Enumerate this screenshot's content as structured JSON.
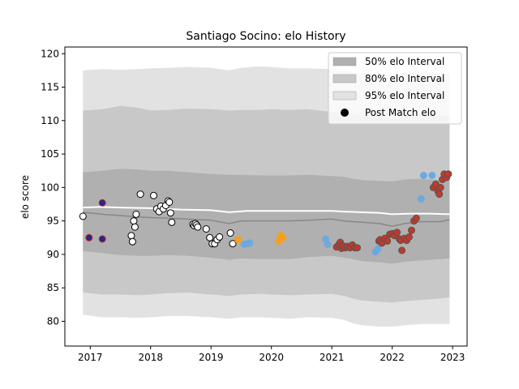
{
  "chart_data": {
    "type": "scatter",
    "title": "Santiago Socino: elo History",
    "xlabel": "",
    "ylabel": "elo score",
    "xlim": [
      2016.58,
      2023.24
    ],
    "ylim": [
      76.3,
      121.0
    ],
    "xticks": [
      2017,
      2018,
      2019,
      2020,
      2021,
      2022,
      2023
    ],
    "yticks": [
      80,
      85,
      90,
      95,
      100,
      105,
      110,
      115,
      120
    ],
    "legend": {
      "position": "top-right",
      "entries": [
        {
          "label": "50% elo Interval",
          "color": "#b0b0b0"
        },
        {
          "label": "80% elo Interval",
          "color": "#c8c8c8"
        },
        {
          "label": "95% elo Interval",
          "color": "#e2e2e2"
        },
        {
          "label": "Post Match elo",
          "color": "#000000"
        }
      ]
    },
    "bands": {
      "x": [
        2016.88,
        2017.2,
        2017.5,
        2017.8,
        2018.0,
        2018.3,
        2018.6,
        2019.0,
        2019.3,
        2019.5,
        2019.8,
        2020.0,
        2020.3,
        2020.6,
        2021.0,
        2021.2,
        2021.35,
        2021.5,
        2021.8,
        2022.0,
        2022.2,
        2022.5,
        2022.8,
        2022.95
      ],
      "p95_upper": [
        117.5,
        117.7,
        117.6,
        117.7,
        117.8,
        117.9,
        118.0,
        117.9,
        117.5,
        117.9,
        118.1,
        118.0,
        117.8,
        117.8,
        117.7,
        117.5,
        117.2,
        117.0,
        116.8,
        116.8,
        117.2,
        117.3,
        117.1,
        117.0
      ],
      "p80_upper": [
        111.5,
        111.7,
        112.2,
        111.9,
        111.5,
        111.6,
        111.8,
        111.7,
        111.5,
        111.6,
        111.6,
        111.7,
        111.6,
        111.7,
        111.3,
        111.2,
        111.0,
        110.8,
        110.5,
        110.4,
        110.7,
        110.7,
        110.7,
        110.7
      ],
      "p50_upper": [
        102.3,
        102.5,
        102.8,
        102.7,
        102.5,
        102.5,
        102.3,
        102.0,
        101.9,
        101.9,
        101.8,
        101.8,
        101.8,
        101.9,
        101.7,
        101.6,
        101.3,
        101.1,
        101.0,
        100.9,
        101.2,
        101.3,
        101.1,
        101.1
      ],
      "median": [
        96.3,
        96.0,
        95.8,
        95.6,
        95.5,
        95.4,
        95.3,
        95.1,
        94.6,
        95.0,
        95.0,
        95.0,
        95.0,
        95.1,
        95.3,
        95.0,
        94.9,
        94.8,
        94.6,
        94.2,
        94.6,
        94.9,
        94.9,
        95.2
      ],
      "p50_lower": [
        90.5,
        90.2,
        89.9,
        89.8,
        89.8,
        89.9,
        89.8,
        89.5,
        89.2,
        89.4,
        89.3,
        89.3,
        89.3,
        89.6,
        89.8,
        89.5,
        89.3,
        89.0,
        88.8,
        88.6,
        88.9,
        89.1,
        89.3,
        89.4
      ],
      "p80_lower": [
        84.3,
        84.0,
        84.0,
        83.9,
        84.0,
        84.2,
        84.3,
        84.0,
        83.8,
        84.0,
        84.1,
        84.0,
        83.9,
        84.0,
        84.1,
        83.8,
        83.4,
        83.1,
        82.9,
        82.8,
        83.0,
        83.2,
        83.4,
        83.6
      ],
      "p95_lower": [
        81.0,
        80.6,
        80.6,
        80.5,
        80.6,
        80.8,
        80.8,
        80.6,
        80.4,
        80.6,
        80.6,
        80.5,
        80.4,
        80.6,
        80.5,
        80.2,
        79.7,
        79.4,
        79.2,
        79.2,
        79.4,
        79.6,
        79.6,
        79.6
      ]
    },
    "mean_line": {
      "color": "#ffffff",
      "x": [
        2016.88,
        2017.2,
        2017.5,
        2018.0,
        2018.5,
        2019.0,
        2019.3,
        2019.6,
        2020.0,
        2020.5,
        2021.0,
        2021.2,
        2021.5,
        2021.8,
        2022.0,
        2022.3,
        2022.6,
        2022.95
      ],
      "y": [
        97.0,
        97.1,
        97.0,
        96.9,
        96.7,
        96.6,
        96.3,
        96.5,
        96.5,
        96.5,
        96.5,
        96.4,
        96.3,
        96.2,
        96.0,
        96.1,
        96.1,
        96.0
      ]
    },
    "series": [
      {
        "fill": "#ffffff",
        "edge": "#000000",
        "x": [
          2016.88,
          2017.68,
          2017.7,
          2017.72,
          2017.74,
          2017.76,
          2017.83,
          2018.05,
          2018.1,
          2018.14,
          2018.17,
          2018.21,
          2018.25,
          2018.29,
          2018.31,
          2018.33,
          2018.35,
          2018.7,
          2018.72,
          2018.74,
          2018.76,
          2018.78,
          2018.92,
          2018.98,
          2019.02,
          2019.06,
          2019.1,
          2019.14,
          2019.32,
          2019.36
        ],
        "y": [
          95.7,
          92.8,
          91.9,
          95.0,
          94.1,
          96.0,
          99.0,
          98.8,
          96.8,
          96.4,
          97.2,
          96.8,
          97.3,
          98.0,
          97.8,
          96.2,
          94.8,
          94.5,
          94.3,
          94.6,
          94.4,
          94.1,
          93.8,
          92.5,
          91.6,
          91.6,
          92.2,
          92.6,
          93.2,
          91.6
        ]
      },
      {
        "fill": "#1f2a8a",
        "edge": "#cc2222",
        "x": [
          2016.98,
          2017.2,
          2017.2
        ],
        "y": [
          92.5,
          97.7,
          92.3
        ]
      },
      {
        "fill": "#f5a01c",
        "edge": "#f5a01c",
        "x": [
          2019.45,
          2020.12,
          2020.16,
          2020.19
        ],
        "y": [
          92.2,
          92.0,
          92.8,
          92.5
        ]
      },
      {
        "fill": "#6fa8dc",
        "edge": "#6fa8dc",
        "x": [
          2019.55,
          2019.6,
          2019.64,
          2020.9,
          2020.93,
          2021.72,
          2021.76,
          2022.48,
          2022.52,
          2022.66
        ],
        "y": [
          91.5,
          91.6,
          91.7,
          92.3,
          91.5,
          90.4,
          90.8,
          98.3,
          101.8,
          101.8
        ]
      },
      {
        "fill": "#c0392b",
        "edge": "#555555",
        "x": [
          2021.08,
          2021.12,
          2021.14,
          2021.16,
          2021.18,
          2021.22,
          2021.26,
          2021.3,
          2021.34,
          2021.38,
          2021.42,
          2021.78,
          2021.8,
          2021.83,
          2021.88,
          2021.92,
          2021.96,
          2022.0,
          2022.04,
          2022.08,
          2022.12,
          2022.14,
          2022.16,
          2022.2,
          2022.24,
          2022.28,
          2022.32,
          2022.36,
          2022.4,
          2022.68,
          2022.72,
          2022.76,
          2022.78,
          2022.8,
          2022.83,
          2022.86,
          2022.9,
          2022.93
        ],
        "y": [
          91.1,
          91.5,
          91.8,
          90.9,
          91.3,
          91.0,
          91.2,
          91.0,
          91.4,
          91.0,
          91.0,
          92.0,
          92.2,
          91.7,
          92.4,
          92.0,
          93.0,
          93.1,
          92.8,
          93.3,
          92.3,
          92.1,
          90.6,
          92.4,
          92.1,
          92.6,
          93.6,
          95.0,
          95.4,
          100.0,
          100.5,
          99.4,
          99.0,
          100.0,
          101.2,
          102.0,
          101.5,
          102.0
        ]
      }
    ]
  }
}
